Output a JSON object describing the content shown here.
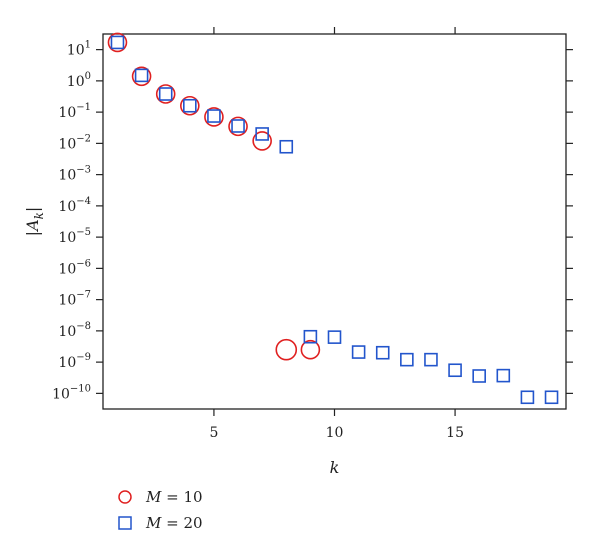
{
  "chart_data": {
    "type": "scatter",
    "xlabel": "k",
    "ylabel": "|A_k|",
    "xlim": [
      0.4,
      19.6
    ],
    "ylim_log10": [
      -10.5,
      1.5
    ],
    "yscale": "log",
    "grid": false,
    "legend_position": "bottom-left",
    "x_ticks": [
      5,
      10,
      15
    ],
    "y_ticks": [
      {
        "value": 10,
        "base": "10",
        "exp": "1"
      },
      {
        "value": 1,
        "base": "10",
        "exp": "0"
      },
      {
        "value": 0.1,
        "base": "10",
        "exp": "−1"
      },
      {
        "value": 0.01,
        "base": "10",
        "exp": "−2"
      },
      {
        "value": 0.001,
        "base": "10",
        "exp": "−3"
      },
      {
        "value": 0.0001,
        "base": "10",
        "exp": "−4"
      },
      {
        "value": 1e-05,
        "base": "10",
        "exp": "−5"
      },
      {
        "value": 1e-06,
        "base": "10",
        "exp": "−6"
      },
      {
        "value": 1e-07,
        "base": "10",
        "exp": "−7"
      },
      {
        "value": 1e-08,
        "base": "10",
        "exp": "−8"
      },
      {
        "value": 1e-09,
        "base": "10",
        "exp": "−9"
      },
      {
        "value": 1e-10,
        "base": "10",
        "exp": "−10"
      }
    ],
    "series": [
      {
        "name": "M = 10",
        "label_var": "M",
        "label_rest": " = 10",
        "marker": "circle",
        "color": "#e02020",
        "x": [
          1,
          2,
          3,
          4,
          5,
          6,
          7,
          8,
          9
        ],
        "y": [
          17,
          1.4,
          0.38,
          0.16,
          0.07,
          0.035,
          0.012,
          2.5e-09,
          2.5e-09
        ],
        "sizes": [
          "m",
          "m",
          "m",
          "m",
          "m",
          "m",
          "m",
          "l",
          "m"
        ]
      },
      {
        "name": "M = 20",
        "label_var": "M",
        "label_rest": " = 20",
        "marker": "square",
        "color": "#2255cc",
        "x": [
          1,
          2,
          3,
          4,
          5,
          6,
          7,
          8,
          9,
          10,
          11,
          12,
          13,
          14,
          15,
          16,
          17,
          18,
          19
        ],
        "y": [
          17,
          1.5,
          0.38,
          0.16,
          0.075,
          0.036,
          0.02,
          0.0078,
          6.5e-09,
          6.3e-09,
          2.1e-09,
          2e-09,
          1.2e-09,
          1.2e-09,
          5.5e-10,
          3.6e-10,
          3.7e-10,
          7.5e-11,
          7.5e-11
        ]
      }
    ]
  }
}
